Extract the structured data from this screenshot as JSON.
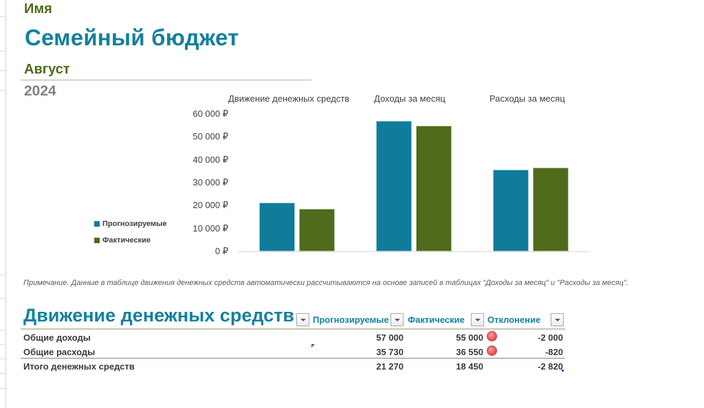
{
  "header": {
    "name_label": "Имя",
    "title": "Семейный бюджет",
    "month": "Август",
    "year": "2024"
  },
  "colors": {
    "title_teal": "#14809e",
    "accent_green": "#4e6b1a",
    "series_forecast": "#0e7c9a",
    "series_actual": "#4f6b1b",
    "indicator_red": "#ea5a5a"
  },
  "chart_data": {
    "type": "bar",
    "title": "",
    "categories": [
      "Движение денежных средств",
      "Доходы за месяц",
      "Расходы за месяц"
    ],
    "series": [
      {
        "name": "Прогнозируемые",
        "values": [
          21270,
          57000,
          35730
        ],
        "color": "#0e7c9a"
      },
      {
        "name": "Фактические",
        "values": [
          18450,
          55000,
          36550
        ],
        "color": "#4f6b1b"
      }
    ],
    "xlabel": "",
    "ylabel": "",
    "ylim": [
      0,
      60000
    ],
    "y_ticks": [
      "0 ₽",
      "10 000 ₽",
      "20 000 ₽",
      "30 000 ₽",
      "40 000 ₽",
      "50 000 ₽",
      "60 000 ₽"
    ],
    "grid": false,
    "legend_position": "left"
  },
  "chart": {
    "category_labels": [
      "Движение денежных средств",
      "Доходы за месяц",
      "Расходы за месяц"
    ],
    "y_ticks": [
      "60 000 ₽",
      "50 000 ₽",
      "40 000 ₽",
      "30 000 ₽",
      "20 000 ₽",
      "10 000 ₽",
      "0 ₽"
    ],
    "legend": [
      "Прогнозируемые",
      "Фактические"
    ]
  },
  "note": "Примечание. Данные в таблице движения денежных средств автоматически рассчитываются на основе записей в таблицах \"Доходы за месяц\" и \"Расходы за месяц\".",
  "cashflow_table": {
    "title": "Движение денежных средств",
    "columns": [
      "Прогнозируемые",
      "Фактические",
      "Отклонение"
    ],
    "column_labels_visible": [
      "Прогнозируемые",
      "Фактические",
      "Отклонение"
    ],
    "rows": [
      {
        "label": "Общие доходы",
        "forecast": "57 000",
        "actual": "55 000",
        "indicator": "red-circle",
        "deviation": "-2 000"
      },
      {
        "label": "Общие расходы",
        "forecast": "35 730",
        "actual": "36 550",
        "indicator": "red-circle",
        "deviation": "-820"
      },
      {
        "label": "Итого денежных средств",
        "forecast": "21 270",
        "actual": "18 450",
        "indicator": "",
        "deviation": "-2 820"
      }
    ]
  }
}
